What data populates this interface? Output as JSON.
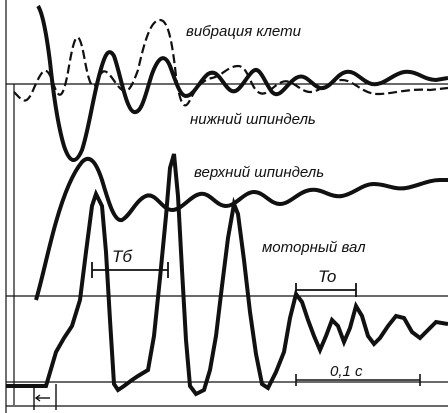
{
  "labels": {
    "stand_vibration": "вибрация клети",
    "lower_spindle": "нижний шпиндель",
    "upper_spindle": "верхний шпиндель",
    "motor_shaft": "моторный вал",
    "period_b": "Tб",
    "period_o": "To",
    "time_scale": "0,1 с"
  },
  "colors": {
    "ink": "#111111",
    "background": "#ffffff"
  }
}
